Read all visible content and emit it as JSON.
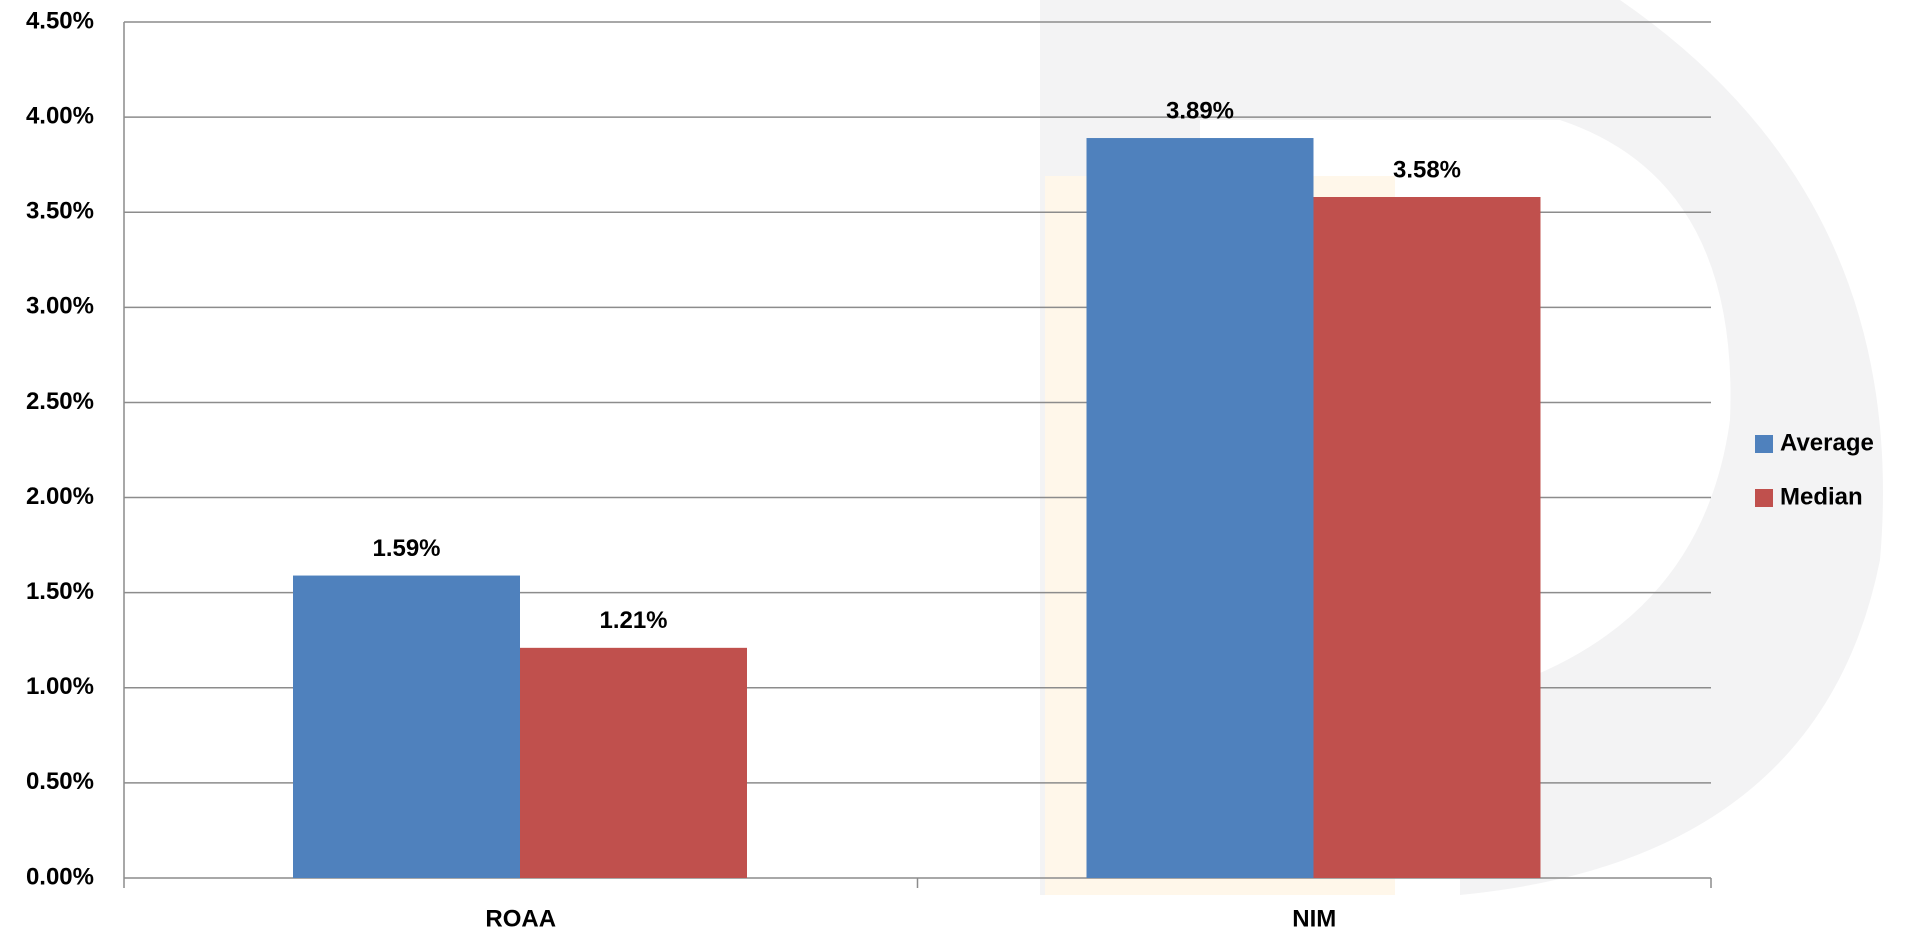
{
  "chart_data": {
    "type": "bar",
    "categories": [
      "ROAA",
      "NIM"
    ],
    "series": [
      {
        "name": "Average",
        "color": "#4f81bd",
        "values": [
          1.59,
          3.89
        ],
        "value_labels": [
          "1.59%",
          "3.89%"
        ]
      },
      {
        "name": "Median",
        "color": "#c0504d",
        "values": [
          1.21,
          3.58
        ],
        "value_labels": [
          "1.21%",
          "3.58%"
        ]
      }
    ],
    "ylim": [
      0,
      4.5
    ],
    "yticks": [
      {
        "value": 0,
        "label": "0.00%"
      },
      {
        "value": 0.5,
        "label": "0.50%"
      },
      {
        "value": 1,
        "label": "1.00%"
      },
      {
        "value": 1.5,
        "label": "1.50%"
      },
      {
        "value": 2,
        "label": "2.00%"
      },
      {
        "value": 2.5,
        "label": "2.50%"
      },
      {
        "value": 3,
        "label": "3.00%"
      },
      {
        "value": 3.5,
        "label": "3.50%"
      },
      {
        "value": 4,
        "label": "4.00%"
      },
      {
        "value": 4.5,
        "label": "4.50%"
      }
    ],
    "grid": true,
    "legend": "right"
  }
}
